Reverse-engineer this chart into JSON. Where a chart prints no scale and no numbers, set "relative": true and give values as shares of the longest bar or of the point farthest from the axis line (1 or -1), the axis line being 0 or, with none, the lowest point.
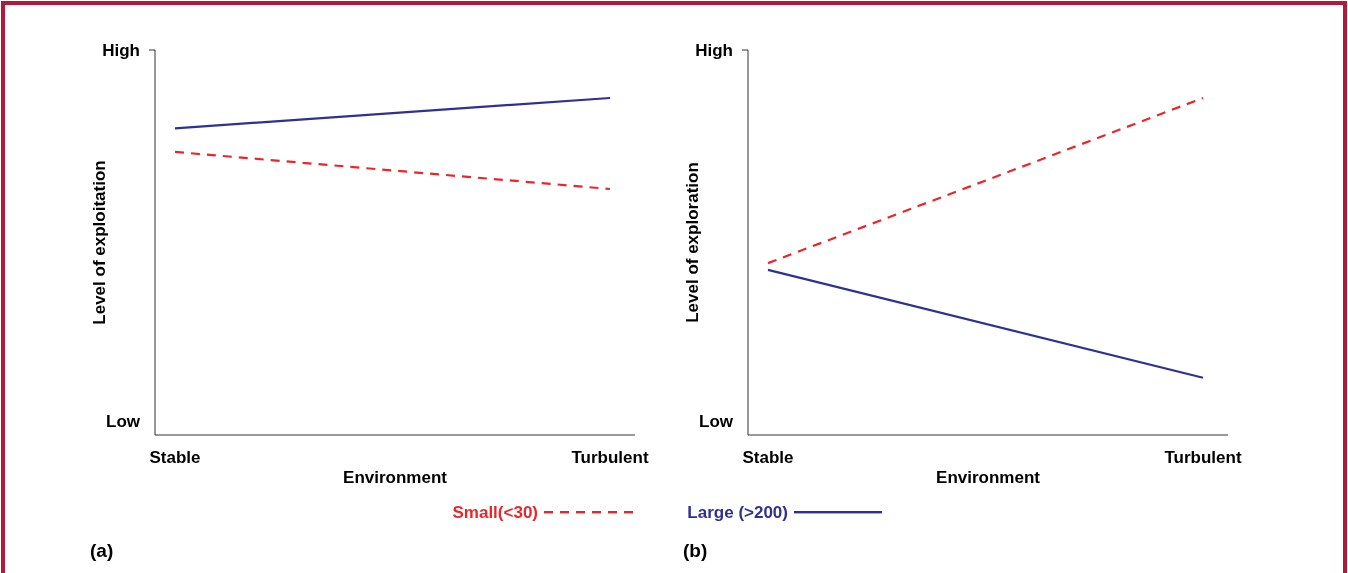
{
  "chart_data": [
    {
      "type": "line",
      "relative": true,
      "categories": [
        "Stable",
        "Turbulent"
      ],
      "xlabel": "Environment",
      "ylabel": "Level of exploitation",
      "legend": "bottom",
      "annotations": [
        "High",
        "Low",
        "(a)"
      ],
      "series": [
        {
          "name": "Small(<30)",
          "color": "#e8262c",
          "line_style": "dashed",
          "values": [
            0.84,
            0.73
          ]
        },
        {
          "name": "Large (>200)",
          "color": "#2e3192",
          "line_style": "solid",
          "values": [
            0.91,
            1
          ]
        }
      ]
    },
    {
      "type": "line",
      "relative": true,
      "categories": [
        "Stable",
        "Turbulent"
      ],
      "xlabel": "Environment",
      "ylabel": "Level of exploration",
      "annotations": [
        "High",
        "Low",
        "(b)"
      ],
      "series": [
        {
          "color": "#e8262c",
          "line_style": "dashed",
          "values": [
            0.51,
            1
          ]
        },
        {
          "color": "#2e3192",
          "line_style": "solid",
          "values": [
            0.49,
            0.17
          ]
        }
      ]
    }
  ]
}
